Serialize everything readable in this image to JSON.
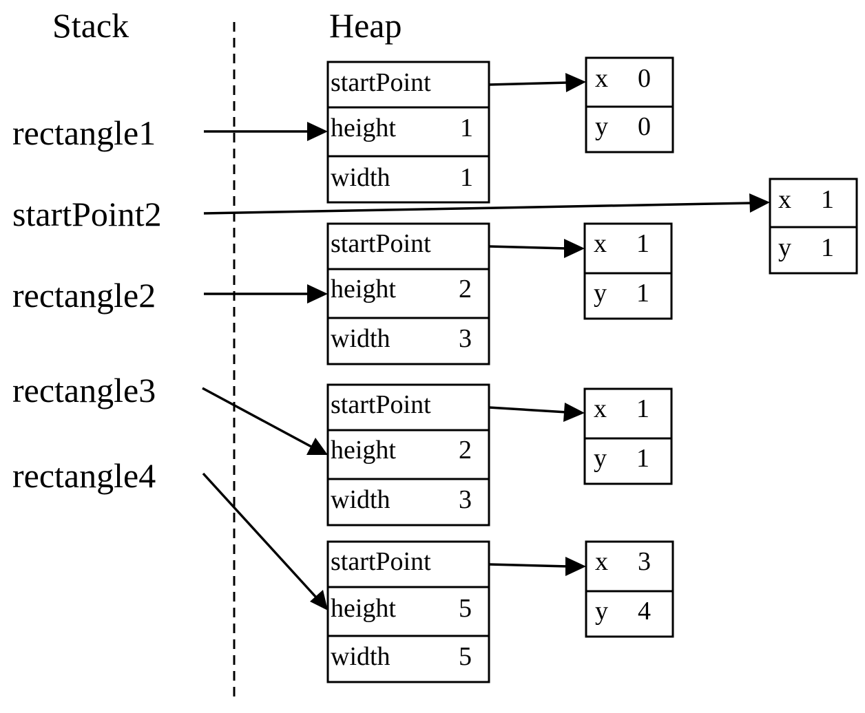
{
  "headers": {
    "stack": "Stack",
    "heap": "Heap"
  },
  "variables": [
    "rectangle1",
    "startPoint2",
    "rectangle2",
    "rectangle3",
    "rectangle4"
  ],
  "rectangles": [
    {
      "fields": [
        {
          "name": "startPoint",
          "value": ""
        },
        {
          "name": "height",
          "value": "1"
        },
        {
          "name": "width",
          "value": "1"
        }
      ]
    },
    {
      "fields": [
        {
          "name": "startPoint",
          "value": ""
        },
        {
          "name": "height",
          "value": "2"
        },
        {
          "name": "width",
          "value": "3"
        }
      ]
    },
    {
      "fields": [
        {
          "name": "startPoint",
          "value": ""
        },
        {
          "name": "height",
          "value": "2"
        },
        {
          "name": "width",
          "value": "3"
        }
      ]
    },
    {
      "fields": [
        {
          "name": "startPoint",
          "value": ""
        },
        {
          "name": "height",
          "value": "5"
        },
        {
          "name": "width",
          "value": "5"
        }
      ]
    }
  ],
  "points": [
    {
      "x": "0",
      "y": "0"
    },
    {
      "x": "1",
      "y": "1"
    },
    {
      "x": "1",
      "y": "1"
    },
    {
      "x": "1",
      "y": "1"
    },
    {
      "x": "3",
      "y": "4"
    }
  ],
  "references": [
    {
      "from": "rectangle1",
      "to": "rect-0"
    },
    {
      "from": "startPoint2",
      "to": "point-1"
    },
    {
      "from": "rectangle2",
      "to": "rect-1"
    },
    {
      "from": "rectangle3",
      "to": "rect-2"
    },
    {
      "from": "rectangle4",
      "to": "rect-3"
    },
    {
      "from": "rect-0.startPoint",
      "to": "point-0"
    },
    {
      "from": "rect-1.startPoint",
      "to": "point-2"
    },
    {
      "from": "rect-2.startPoint",
      "to": "point-3"
    },
    {
      "from": "rect-3.startPoint",
      "to": "point-4"
    }
  ]
}
